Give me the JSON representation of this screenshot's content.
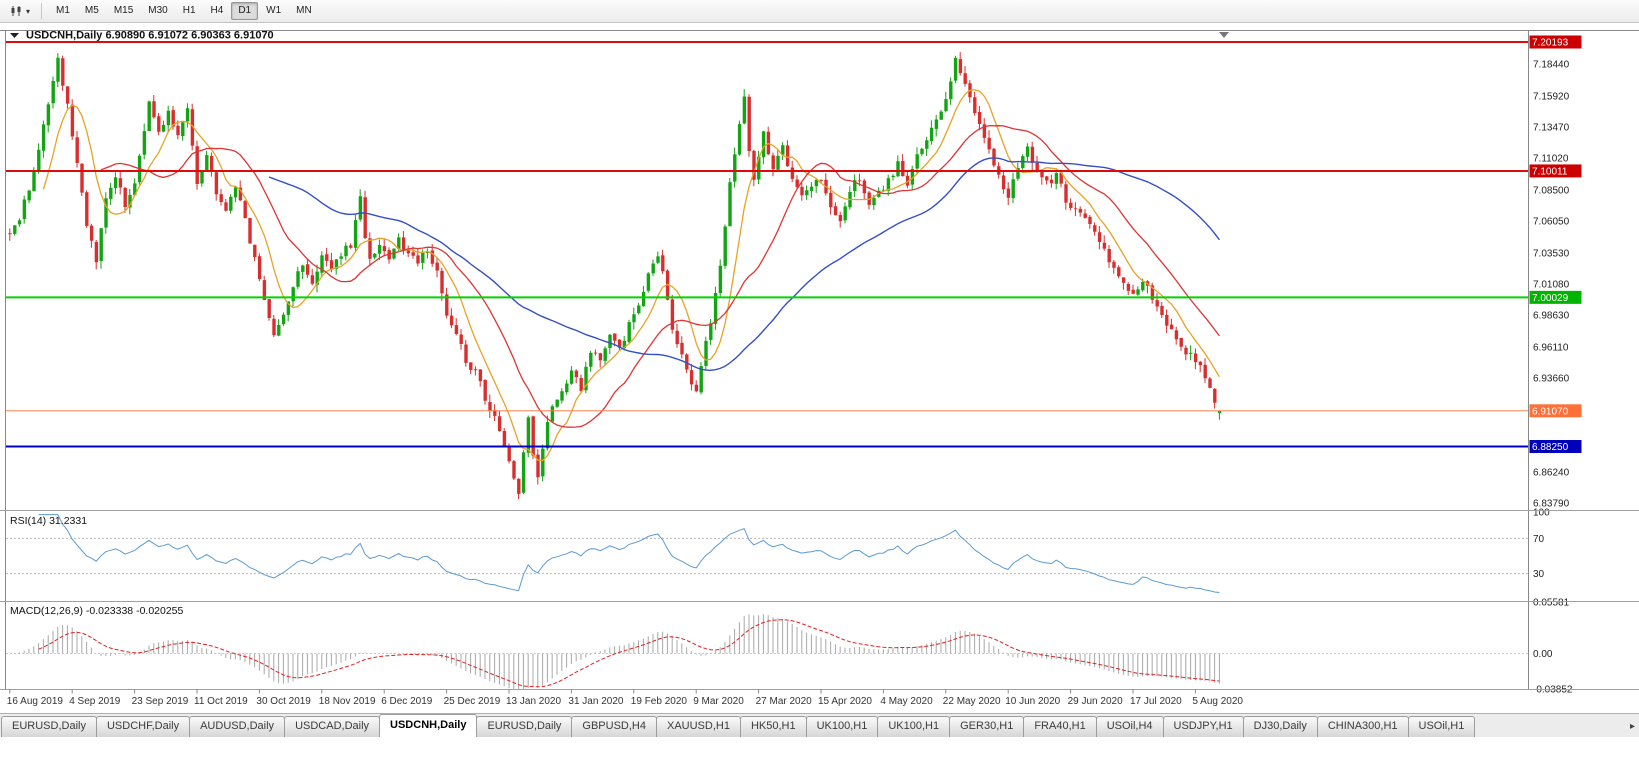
{
  "toolbar": {
    "timeframes": [
      "M1",
      "M5",
      "M15",
      "M30",
      "H1",
      "H4",
      "D1",
      "W1",
      "MN"
    ],
    "active_timeframe": "D1"
  },
  "chart": {
    "title_symbol": "USDCNH,Daily",
    "ohlc": {
      "open": "6.90890",
      "high": "6.91072",
      "low": "6.90363",
      "close": "6.91070"
    },
    "price_ticks": [
      "7.18440",
      "7.15920",
      "7.13470",
      "7.11020",
      "7.08500",
      "7.06050",
      "7.03530",
      "7.01080",
      "6.98630",
      "6.96110",
      "6.93660",
      "6.86240",
      "6.83790"
    ],
    "levels": [
      {
        "value": 7.20193,
        "label": "7.20193",
        "color": "#dd0c0c",
        "badge_bg": "#cc0000",
        "width": 2
      },
      {
        "value": 7.10011,
        "label": "7.10011",
        "color": "#dd0c0c",
        "badge_bg": "#cc0000",
        "width": 2
      },
      {
        "value": 7.00029,
        "label": "7.00029",
        "color": "#00d400",
        "badge_bg": "#00b400",
        "width": 2
      },
      {
        "value": 6.9107,
        "label": "6.91070",
        "color": "#ff8055",
        "badge_bg": "#ff6f38",
        "width": 1
      },
      {
        "value": 6.8825,
        "label": "6.88250",
        "color": "#0000cd",
        "badge_bg": "#0000bb",
        "width": 2
      }
    ],
    "date_labels": [
      "16 Aug 2019",
      "4 Sep 2019",
      "23 Sep 2019",
      "11 Oct 2019",
      "30 Oct 2019",
      "18 Nov 2019",
      "6 Dec 2019",
      "25 Dec 2019",
      "13 Jan 2020",
      "31 Jan 2020",
      "19 Feb 2020",
      "9 Mar 2020",
      "27 Mar 2020",
      "15 Apr 2020",
      "4 May 2020",
      "22 May 2020",
      "10 Jun 2020",
      "29 Jun 2020",
      "17 Jul 2020",
      "5 Aug 2020"
    ],
    "colors": {
      "up": "#12a412",
      "down": "#d92e2e",
      "ma_fast": "#e8a228",
      "ma_mid": "#e03434",
      "ma_slow": "#3350c8",
      "rsi": "#5b9bd5",
      "macd_hist": "#a8a8a8",
      "macd_signal": "#dd2222"
    }
  },
  "rsi": {
    "label": "RSI(14)",
    "value": "31.2331",
    "ticks": [
      "100",
      "70",
      "30"
    ],
    "tick_values": [
      100,
      70,
      30
    ],
    "dashed_levels": [
      70,
      30
    ]
  },
  "macd": {
    "label": "MACD(12,26,9)",
    "value_main": "-0.023338",
    "value_signal": "-0.020255",
    "ticks": [
      "0.05581",
      "0.00",
      "-0.03852"
    ],
    "tick_values": [
      0.05581,
      0,
      -0.03852
    ],
    "range": [
      -0.03852,
      0.05581
    ]
  },
  "chart_data": {
    "type": "candlestick",
    "symbol": "USDCNH",
    "timeframe": "Daily",
    "n_candles": 253,
    "price_axis_top": 7.20193,
    "price_axis_bottom": 6.8379,
    "indicators": [
      "SMA fast (orange)",
      "SMA mid (red)",
      "SMA slow (blue)",
      "RSI(14)",
      "MACD(12,26,9)"
    ],
    "last_candle": {
      "open": 6.9089,
      "high": 6.91072,
      "low": 6.90363,
      "close": 6.9107
    },
    "anchors": [
      [
        0,
        7.05
      ],
      [
        2,
        7.062
      ],
      [
        4,
        7.088
      ],
      [
        6,
        7.12
      ],
      [
        8,
        7.155
      ],
      [
        10,
        7.187
      ],
      [
        12,
        7.15
      ],
      [
        14,
        7.105
      ],
      [
        16,
        7.06
      ],
      [
        18,
        7.028
      ],
      [
        20,
        7.08
      ],
      [
        22,
        7.098
      ],
      [
        24,
        7.07
      ],
      [
        26,
        7.092
      ],
      [
        28,
        7.13
      ],
      [
        29,
        7.152
      ],
      [
        31,
        7.13
      ],
      [
        33,
        7.147
      ],
      [
        35,
        7.128
      ],
      [
        37,
        7.148
      ],
      [
        39,
        7.092
      ],
      [
        41,
        7.112
      ],
      [
        43,
        7.082
      ],
      [
        45,
        7.068
      ],
      [
        47,
        7.088
      ],
      [
        49,
        7.06
      ],
      [
        51,
        7.03
      ],
      [
        53,
        7.0
      ],
      [
        55,
        6.968
      ],
      [
        57,
        6.99
      ],
      [
        59,
        7.008
      ],
      [
        61,
        7.028
      ],
      [
        63,
        7.012
      ],
      [
        65,
        7.035
      ],
      [
        67,
        7.022
      ],
      [
        69,
        7.033
      ],
      [
        71,
        7.042
      ],
      [
        73,
        7.078
      ],
      [
        74,
        7.048
      ],
      [
        75,
        7.03
      ],
      [
        77,
        7.04
      ],
      [
        79,
        7.032
      ],
      [
        81,
        7.047
      ],
      [
        83,
        7.035
      ],
      [
        85,
        7.028
      ],
      [
        87,
        7.04
      ],
      [
        89,
        7.02
      ],
      [
        91,
        6.988
      ],
      [
        93,
        6.972
      ],
      [
        95,
        6.952
      ],
      [
        97,
        6.94
      ],
      [
        99,
        6.922
      ],
      [
        101,
        6.905
      ],
      [
        103,
        6.882
      ],
      [
        105,
        6.856
      ],
      [
        106,
        6.845
      ],
      [
        107,
        6.88
      ],
      [
        108,
        6.903
      ],
      [
        109,
        6.872
      ],
      [
        110,
        6.858
      ],
      [
        111,
        6.88
      ],
      [
        112,
        6.9
      ],
      [
        113,
        6.912
      ],
      [
        115,
        6.928
      ],
      [
        117,
        6.943
      ],
      [
        119,
        6.928
      ],
      [
        121,
        6.958
      ],
      [
        123,
        6.948
      ],
      [
        125,
        6.968
      ],
      [
        127,
        6.958
      ],
      [
        129,
        6.978
      ],
      [
        131,
        6.995
      ],
      [
        133,
        7.018
      ],
      [
        135,
        7.035
      ],
      [
        136,
        7.02
      ],
      [
        138,
        6.978
      ],
      [
        140,
        6.952
      ],
      [
        142,
        6.935
      ],
      [
        143,
        6.928
      ],
      [
        144,
        6.945
      ],
      [
        146,
        6.98
      ],
      [
        148,
        7.022
      ],
      [
        150,
        7.09
      ],
      [
        152,
        7.14
      ],
      [
        153,
        7.158
      ],
      [
        154,
        7.118
      ],
      [
        155,
        7.092
      ],
      [
        157,
        7.128
      ],
      [
        159,
        7.102
      ],
      [
        161,
        7.118
      ],
      [
        163,
        7.096
      ],
      [
        165,
        7.078
      ],
      [
        167,
        7.088
      ],
      [
        169,
        7.096
      ],
      [
        171,
        7.072
      ],
      [
        173,
        7.062
      ],
      [
        175,
        7.086
      ],
      [
        177,
        7.094
      ],
      [
        179,
        7.076
      ],
      [
        181,
        7.082
      ],
      [
        183,
        7.092
      ],
      [
        185,
        7.106
      ],
      [
        187,
        7.092
      ],
      [
        189,
        7.11
      ],
      [
        191,
        7.124
      ],
      [
        193,
        7.142
      ],
      [
        195,
        7.158
      ],
      [
        197,
        7.186
      ],
      [
        199,
        7.168
      ],
      [
        201,
        7.148
      ],
      [
        203,
        7.128
      ],
      [
        205,
        7.106
      ],
      [
        207,
        7.088
      ],
      [
        208,
        7.082
      ],
      [
        210,
        7.102
      ],
      [
        212,
        7.118
      ],
      [
        214,
        7.098
      ],
      [
        216,
        7.09
      ],
      [
        218,
        7.096
      ],
      [
        220,
        7.078
      ],
      [
        222,
        7.068
      ],
      [
        224,
        7.062
      ],
      [
        226,
        7.05
      ],
      [
        228,
        7.038
      ],
      [
        230,
        7.022
      ],
      [
        232,
        7.01
      ],
      [
        234,
        7.003
      ],
      [
        236,
        7.012
      ],
      [
        238,
        7.0
      ],
      [
        240,
        6.988
      ],
      [
        242,
        6.972
      ],
      [
        244,
        6.962
      ],
      [
        246,
        6.954
      ],
      [
        248,
        6.944
      ],
      [
        250,
        6.93
      ],
      [
        251,
        6.916
      ],
      [
        252,
        6.911
      ]
    ]
  },
  "tabs": {
    "items": [
      "EURUSD,Daily",
      "USDCHF,Daily",
      "AUDUSD,Daily",
      "USDCAD,Daily",
      "USDCNH,Daily",
      "EURUSD,Daily",
      "GBPUSD,H4",
      "XAUUSD,H1",
      "HK50,H1",
      "UK100,H1",
      "UK100,H1",
      "GER30,H1",
      "FRA40,H1",
      "USOil,H4",
      "USDJPY,H1",
      "DJ30,Daily",
      "CHINA300,H1",
      "USOil,H1"
    ],
    "active_index": 4,
    "scroll_icon": "▸"
  }
}
